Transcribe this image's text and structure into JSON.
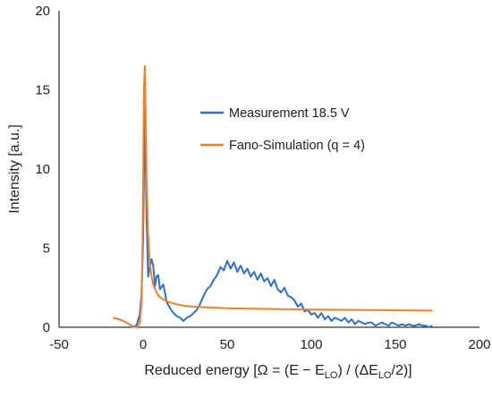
{
  "chart_data": {
    "type": "line",
    "title": "",
    "xlabel": "Reduced energy [Ω = (E − E",
    "xlabel_sub1": "LO",
    "xlabel_mid": ") / (ΔE",
    "xlabel_sub2": "LO",
    "xlabel_end": "/2)]",
    "ylabel": "Intensity [a.u.]",
    "xlim": [
      -50,
      200
    ],
    "ylim": [
      0,
      20
    ],
    "xticks": [
      -50,
      0,
      50,
      100,
      150,
      200
    ],
    "yticks": [
      0,
      5,
      10,
      15,
      20
    ],
    "grid": false,
    "legend_position": "upper-center",
    "series": [
      {
        "name": "Measurement 18.5 V",
        "color": "#2F72C4",
        "x": [
          -8,
          -4,
          -2,
          -1,
          0,
          0.5,
          1,
          1.5,
          2,
          3,
          4,
          5,
          6,
          7,
          8,
          9,
          10,
          12,
          14,
          16,
          18,
          20,
          22,
          24,
          26,
          28,
          30,
          32,
          34,
          36,
          38,
          40,
          42,
          44,
          46,
          48,
          50,
          52,
          54,
          56,
          58,
          60,
          62,
          64,
          66,
          68,
          70,
          72,
          74,
          76,
          78,
          80,
          82,
          84,
          86,
          88,
          90,
          92,
          94,
          96,
          98,
          100,
          102,
          104,
          106,
          108,
          110,
          112,
          114,
          116,
          118,
          120,
          122,
          124,
          126,
          128,
          130,
          132,
          134,
          136,
          138,
          140,
          142,
          144,
          146,
          148,
          150,
          152,
          154,
          156,
          158,
          160,
          162,
          164,
          166,
          168,
          170,
          172
        ],
        "y": [
          0.0,
          0.1,
          0.8,
          2.0,
          5.5,
          9.5,
          13.8,
          11.0,
          7.0,
          3.2,
          3.8,
          4.3,
          3.9,
          2.6,
          3.2,
          3.3,
          2.4,
          2.7,
          1.6,
          1.2,
          0.9,
          0.7,
          0.6,
          0.4,
          0.6,
          0.7,
          0.9,
          1.1,
          1.5,
          2.0,
          2.4,
          2.6,
          3.0,
          3.3,
          3.8,
          3.6,
          4.2,
          3.7,
          4.1,
          3.5,
          3.9,
          3.4,
          3.7,
          3.2,
          3.5,
          3.0,
          3.4,
          2.9,
          3.1,
          2.6,
          3.0,
          2.4,
          2.2,
          2.5,
          2.0,
          1.9,
          1.7,
          1.3,
          1.5,
          1.0,
          1.1,
          0.8,
          0.9,
          0.6,
          0.9,
          0.5,
          0.7,
          0.4,
          0.6,
          0.5,
          0.4,
          0.6,
          0.3,
          0.5,
          0.2,
          0.4,
          0.3,
          0.2,
          0.3,
          0.3,
          0.1,
          0.2,
          0.3,
          0.2,
          0.1,
          0.3,
          0.2,
          0.1,
          0.2,
          0.1,
          0.2,
          0.1,
          0.1,
          0.2,
          0.1,
          0.1,
          0.0,
          0.1
        ]
      },
      {
        "name": "Fano-Simulation (q = 4)",
        "color": "#F07F2A",
        "x": [
          -18,
          -14,
          -10,
          -6,
          -4,
          -3,
          -2,
          -1,
          -0.5,
          0,
          0.5,
          1,
          1.5,
          2,
          3,
          4,
          5,
          6,
          8,
          10,
          12,
          15,
          20,
          25,
          30,
          40,
          50,
          60,
          80,
          100,
          120,
          140,
          160,
          172
        ],
        "y": [
          0.6,
          0.5,
          0.3,
          0.05,
          0.0,
          0.05,
          0.3,
          1.5,
          4.0,
          9.0,
          15.0,
          16.5,
          13.5,
          9.5,
          5.8,
          4.0,
          3.2,
          2.7,
          2.2,
          1.9,
          1.75,
          1.6,
          1.45,
          1.35,
          1.3,
          1.25,
          1.2,
          1.18,
          1.15,
          1.12,
          1.1,
          1.08,
          1.06,
          1.05
        ]
      }
    ]
  }
}
